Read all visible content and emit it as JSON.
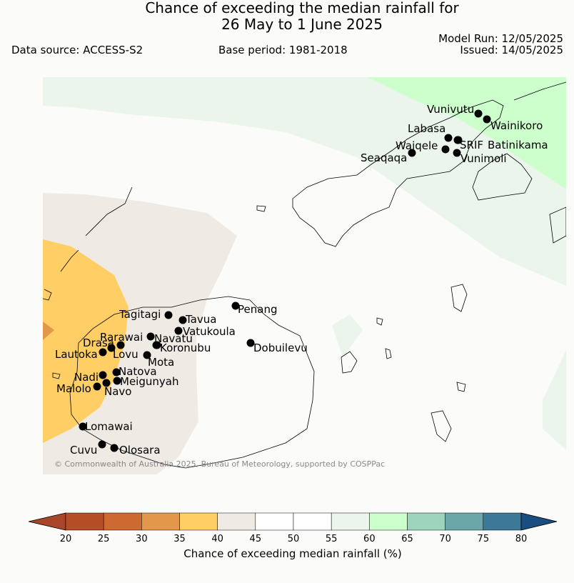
{
  "header": {
    "title_line1": "Chance of exceeding the median rainfall for",
    "title_line2": "26 May to 1 June 2025",
    "model_run": "Model Run: 12/05/2025",
    "issued": "Issued: 14/05/2025",
    "data_source": "Data source: ACCESS-S2",
    "base_period": "Base period: 1981-2018"
  },
  "map": {
    "copyright": "© Commonwealth of Australia 2025, Bureau of Meteorology, supported by COSPPac",
    "stations": [
      "Vunivutu",
      "Wainikoro",
      "Labasa",
      "Waiqele",
      "SRIF",
      "Batinikama",
      "Seaqaqa",
      "Vunimoli",
      "Penang",
      "Tagitagi",
      "Tavua",
      "Vatukoula",
      "Rarawai",
      "Navatu",
      "Drasa",
      "Koronubu",
      "Lautoka",
      "Lovu",
      "Mota",
      "Natova",
      "Nadi",
      "Meigunyah",
      "Malolo",
      "Navo",
      "Lomawai",
      "Cuvu",
      "Olosara",
      "Dobuilevu"
    ]
  },
  "legend": {
    "label": "Chance of exceeding median rainfall (%)",
    "ticks": [
      "20",
      "25",
      "30",
      "35",
      "40",
      "45",
      "50",
      "55",
      "60",
      "65",
      "70",
      "75",
      "80"
    ],
    "colors": [
      "#a9462a",
      "#b54d27",
      "#cd6931",
      "#e3974a",
      "#ffcf66",
      "#f0eae5",
      "#ffffff",
      "#ffffff",
      "#ebf5eb",
      "#ccffcc",
      "#9dd4bb",
      "#6ba7a9",
      "#3d7899",
      "#1a4d80"
    ]
  }
}
